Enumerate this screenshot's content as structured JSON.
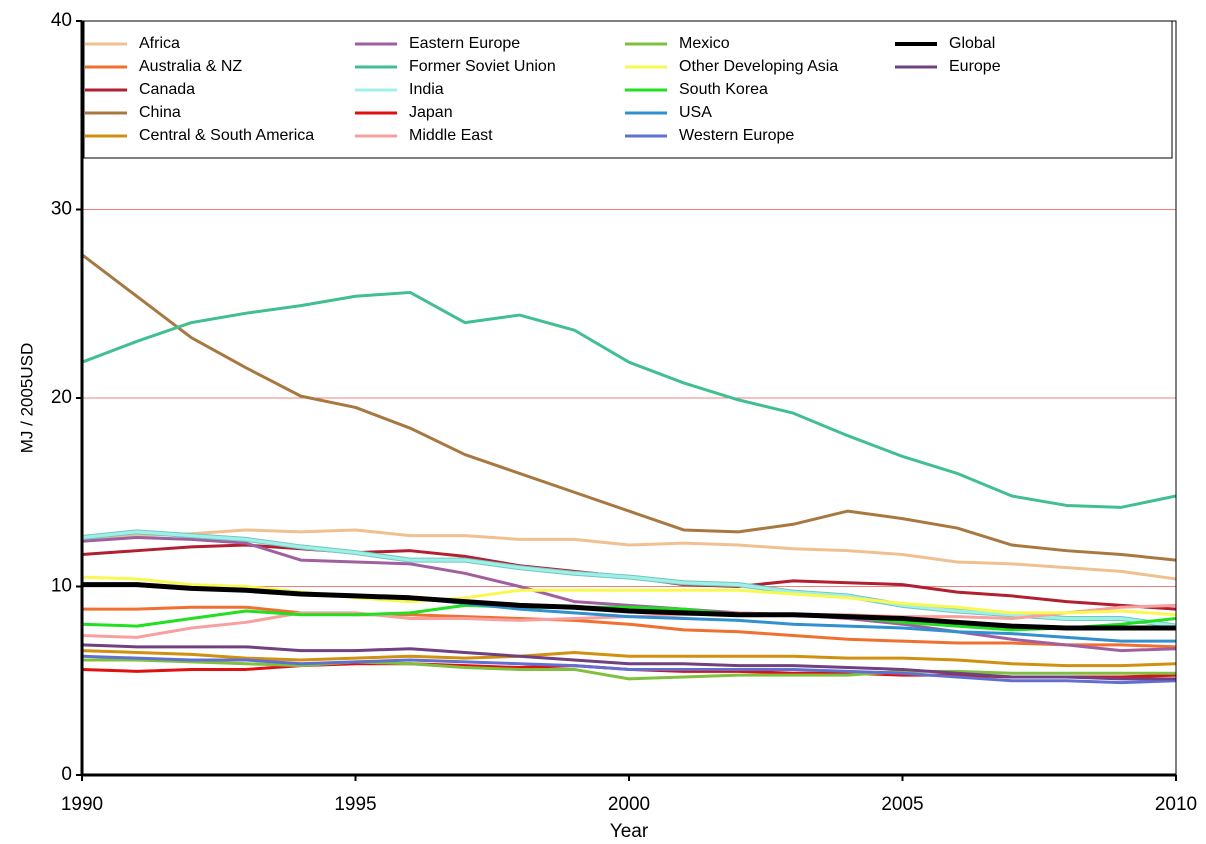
{
  "chart_data": {
    "type": "line",
    "x_label": "Year",
    "y_label": "MJ / 2005USD",
    "x": [
      1990,
      1991,
      1992,
      1993,
      1994,
      1995,
      1996,
      1997,
      1998,
      1999,
      2000,
      2001,
      2002,
      2003,
      2004,
      2005,
      2006,
      2007,
      2008,
      2009,
      2010
    ],
    "xlim": [
      1990,
      2010
    ],
    "xticks": [
      1990,
      1995,
      2000,
      2005,
      2010
    ],
    "ylim": [
      0,
      40
    ],
    "yticks": [
      0,
      10,
      20,
      30,
      40
    ],
    "grid": true,
    "series": [
      {
        "name": "Africa",
        "color": "#f0c090",
        "values": [
          12.5,
          12.7,
          12.8,
          13.0,
          12.9,
          13.0,
          12.7,
          12.7,
          12.5,
          12.5,
          12.2,
          12.3,
          12.2,
          12.0,
          11.9,
          11.7,
          11.3,
          11.2,
          11.0,
          10.8,
          10.4
        ]
      },
      {
        "name": "Australia & NZ",
        "color": "#f07030",
        "values": [
          8.8,
          8.8,
          8.9,
          8.9,
          8.6,
          8.5,
          8.5,
          8.4,
          8.3,
          8.2,
          8.0,
          7.7,
          7.6,
          7.4,
          7.2,
          7.1,
          7.0,
          7.0,
          6.9,
          6.9,
          6.8
        ]
      },
      {
        "name": "Canada",
        "color": "#b02030",
        "values": [
          11.7,
          11.9,
          12.1,
          12.2,
          12.0,
          11.8,
          11.9,
          11.6,
          11.1,
          10.8,
          10.5,
          10.1,
          10.0,
          10.3,
          10.2,
          10.1,
          9.7,
          9.5,
          9.2,
          9.0,
          8.8
        ]
      },
      {
        "name": "China",
        "color": "#a87840",
        "values": [
          27.6,
          25.4,
          23.2,
          21.6,
          20.1,
          19.5,
          18.4,
          17.0,
          16.0,
          15.0,
          14.0,
          13.0,
          12.9,
          13.3,
          14.0,
          13.6,
          13.1,
          12.2,
          11.9,
          11.7,
          11.4
        ]
      },
      {
        "name": "Central & South America",
        "color": "#d09010",
        "values": [
          6.6,
          6.5,
          6.4,
          6.2,
          6.1,
          6.2,
          6.3,
          6.2,
          6.3,
          6.5,
          6.3,
          6.3,
          6.3,
          6.3,
          6.2,
          6.2,
          6.1,
          5.9,
          5.8,
          5.8,
          5.9
        ]
      },
      {
        "name": "Eastern Europe",
        "color": "#a060a0",
        "values": [
          12.4,
          12.6,
          12.5,
          12.3,
          11.4,
          11.3,
          11.2,
          10.7,
          10.0,
          9.2,
          9.0,
          8.8,
          8.6,
          8.5,
          8.3,
          8.0,
          7.6,
          7.2,
          6.9,
          6.6,
          6.7
        ]
      },
      {
        "name": "Former Soviet Union",
        "color": "#40c090",
        "values": [
          21.9,
          23.0,
          24.0,
          24.5,
          24.9,
          25.4,
          25.6,
          24.0,
          24.4,
          23.6,
          21.9,
          20.8,
          19.9,
          19.2,
          18.0,
          16.9,
          16.0,
          14.8,
          14.3,
          14.2,
          14.8
        ]
      },
      {
        "name": "India",
        "color": "#a0f0e8",
        "values": [
          12.6,
          12.9,
          12.7,
          12.5,
          12.1,
          11.8,
          11.4,
          11.4,
          11.0,
          10.7,
          10.5,
          10.2,
          10.1,
          9.7,
          9.5,
          9.0,
          8.7,
          8.5,
          8.3,
          8.3,
          7.9
        ]
      },
      {
        "name": "Japan",
        "color": "#e01010",
        "values": [
          5.6,
          5.5,
          5.6,
          5.6,
          5.8,
          5.9,
          5.9,
          5.8,
          5.7,
          5.8,
          5.6,
          5.5,
          5.5,
          5.4,
          5.4,
          5.3,
          5.3,
          5.2,
          5.2,
          5.2,
          5.3
        ]
      },
      {
        "name": "Middle East",
        "color": "#f8a0a0",
        "values": [
          7.4,
          7.3,
          7.8,
          8.1,
          8.6,
          8.6,
          8.3,
          8.3,
          8.2,
          8.3,
          8.4,
          8.5,
          8.6,
          8.5,
          8.5,
          8.4,
          8.4,
          8.3,
          8.6,
          8.9,
          9.0
        ]
      },
      {
        "name": "Mexico",
        "color": "#80c040",
        "values": [
          6.1,
          6.1,
          6.0,
          5.9,
          5.8,
          6.0,
          5.9,
          5.7,
          5.6,
          5.6,
          5.1,
          5.2,
          5.3,
          5.3,
          5.3,
          5.5,
          5.5,
          5.4,
          5.4,
          5.4,
          5.4
        ]
      },
      {
        "name": "Other Developing Asia",
        "color": "#f8f850",
        "values": [
          10.5,
          10.4,
          10.1,
          10.0,
          9.7,
          9.4,
          9.2,
          9.4,
          9.8,
          9.8,
          9.8,
          9.8,
          9.8,
          9.6,
          9.4,
          9.1,
          8.9,
          8.6,
          8.6,
          8.7,
          8.5
        ]
      },
      {
        "name": "South Korea",
        "color": "#20e020",
        "values": [
          8.0,
          7.9,
          8.3,
          8.7,
          8.5,
          8.5,
          8.6,
          9.0,
          8.9,
          8.9,
          8.9,
          8.8,
          8.5,
          8.5,
          8.4,
          8.1,
          7.9,
          7.7,
          7.8,
          8.0,
          8.3
        ]
      },
      {
        "name": "USA",
        "color": "#3090d0",
        "values": [
          10.1,
          10.1,
          9.9,
          9.8,
          9.6,
          9.5,
          9.4,
          9.1,
          8.8,
          8.6,
          8.4,
          8.3,
          8.2,
          8.0,
          7.9,
          7.8,
          7.6,
          7.5,
          7.3,
          7.1,
          7.1
        ]
      },
      {
        "name": "Western Europe",
        "color": "#6070d0",
        "values": [
          6.3,
          6.2,
          6.1,
          6.1,
          5.9,
          6.0,
          6.1,
          6.0,
          5.9,
          5.8,
          5.6,
          5.6,
          5.6,
          5.6,
          5.5,
          5.4,
          5.2,
          5.0,
          5.0,
          4.9,
          5.0
        ]
      },
      {
        "name": "Global",
        "color": "#000000",
        "values": [
          10.1,
          10.1,
          9.9,
          9.8,
          9.6,
          9.5,
          9.4,
          9.2,
          9.0,
          8.9,
          8.7,
          8.6,
          8.5,
          8.5,
          8.4,
          8.3,
          8.1,
          7.9,
          7.8,
          7.8,
          7.8
        ]
      },
      {
        "name": "Europe",
        "color": "#704080",
        "values": [
          6.9,
          6.8,
          6.8,
          6.8,
          6.6,
          6.6,
          6.7,
          6.5,
          6.3,
          6.1,
          5.9,
          5.9,
          5.8,
          5.8,
          5.7,
          5.6,
          5.4,
          5.2,
          5.2,
          5.1,
          5.1
        ]
      }
    ]
  }
}
